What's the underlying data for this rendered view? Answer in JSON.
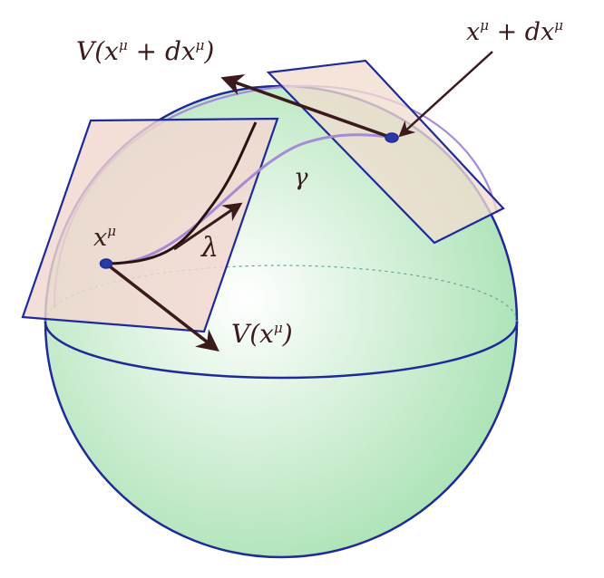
{
  "labels": {
    "v_top_base": "V(x",
    "v_top_mu1": "μ",
    "v_top_mid": " + dx",
    "v_top_mu2": "μ",
    "v_top_end": ")",
    "pt_top_base": "x",
    "pt_top_mu1": "μ",
    "pt_top_mid": " + dx",
    "pt_top_mu2": "μ",
    "pt_base": "x",
    "pt_mu": "μ",
    "lambda": "λ",
    "gamma": "γ",
    "v_bot_base": "V(x",
    "v_bot_mu": "μ",
    "v_bot_end": ")"
  },
  "colors": {
    "sphere_edge": "#7fd48f",
    "sphere_center": "#ffffff",
    "outline": "#1f2a9a",
    "plane_fill": "#f1d7cf",
    "curve_purple": "#a58ad8",
    "arrow": "#3a1a1a",
    "point_fill": "#2b3aa0"
  }
}
